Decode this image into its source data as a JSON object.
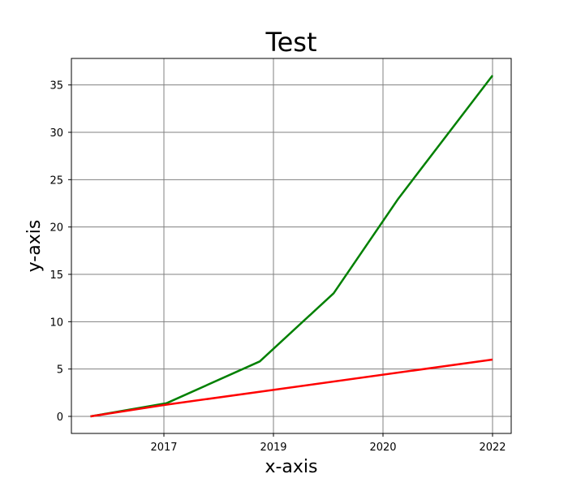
{
  "chart_data": {
    "type": "line",
    "title": "Test",
    "xlabel": "x-axis",
    "ylabel": "y-axis",
    "x_tick_labels": [
      "2017",
      "2019",
      "2020",
      "2022"
    ],
    "y_ticks": [
      0,
      5,
      10,
      15,
      20,
      25,
      30,
      35
    ],
    "ylim": [
      -1.8,
      37.8
    ],
    "grid": true,
    "legend": "none",
    "colors": {
      "series_1": "#ff0000",
      "series_2": "#008000",
      "grid": "#808080"
    },
    "series": [
      {
        "color": "#008000",
        "x": [
          2016.33,
          2017.05,
          2018.75,
          2019.55,
          2020.28,
          2022.0
        ],
        "y": [
          0,
          1.4,
          5.8,
          13.0,
          23.0,
          36.0
        ]
      },
      {
        "color": "#ff0000",
        "x": [
          2016.33,
          2017.0,
          2022.0
        ],
        "y": [
          0,
          1.2,
          6.0
        ]
      }
    ]
  }
}
